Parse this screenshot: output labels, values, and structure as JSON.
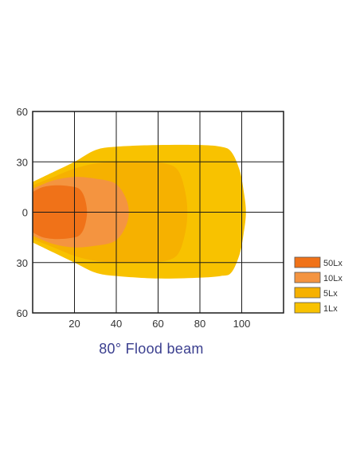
{
  "chart_data": {
    "type": "area",
    "title": "80°  Flood beam",
    "x_ticks": [
      "20",
      "40",
      "60",
      "80",
      "100"
    ],
    "y_ticks": [
      "60",
      "30",
      "0",
      "30",
      "60"
    ],
    "xlim": [
      0,
      120
    ],
    "ylim": [
      -60,
      60
    ],
    "grid": true,
    "legend_position": "right",
    "series": [
      {
        "name": "1Lx",
        "color": "#f8c200",
        "outline": [
          [
            0,
            18
          ],
          [
            10,
            24
          ],
          [
            20,
            30
          ],
          [
            30,
            37
          ],
          [
            40,
            39
          ],
          [
            60,
            40
          ],
          [
            80,
            40
          ],
          [
            90,
            39
          ],
          [
            95,
            36
          ],
          [
            99,
            25
          ],
          [
            101,
            12
          ],
          [
            102,
            0
          ],
          [
            101,
            -12
          ],
          [
            99,
            -25
          ],
          [
            95,
            -36
          ],
          [
            90,
            -38
          ],
          [
            80,
            -39
          ],
          [
            60,
            -39.5
          ],
          [
            40,
            -38
          ],
          [
            30,
            -36
          ],
          [
            20,
            -30
          ],
          [
            10,
            -24
          ],
          [
            0,
            -18
          ]
        ]
      },
      {
        "name": "5Lx",
        "color": "#f6b100",
        "outline": [
          [
            0,
            16
          ],
          [
            10,
            21
          ],
          [
            20,
            26
          ],
          [
            30,
            29
          ],
          [
            40,
            30
          ],
          [
            55,
            30
          ],
          [
            65,
            28.5
          ],
          [
            70,
            24
          ],
          [
            73,
            12
          ],
          [
            74,
            0
          ],
          [
            73,
            -12
          ],
          [
            70,
            -24
          ],
          [
            65,
            -28.5
          ],
          [
            55,
            -30
          ],
          [
            40,
            -30
          ],
          [
            30,
            -29
          ],
          [
            20,
            -26
          ],
          [
            10,
            -21
          ],
          [
            0,
            -16
          ]
        ]
      },
      {
        "name": "10Lx",
        "color": "#f49440",
        "outline": [
          [
            0,
            14
          ],
          [
            10,
            19
          ],
          [
            20,
            21
          ],
          [
            30,
            20
          ],
          [
            38,
            18
          ],
          [
            42,
            14
          ],
          [
            45,
            7
          ],
          [
            46,
            0
          ],
          [
            45,
            -7
          ],
          [
            42,
            -14
          ],
          [
            38,
            -18
          ],
          [
            30,
            -20
          ],
          [
            20,
            -21
          ],
          [
            10,
            -19
          ],
          [
            0,
            -14
          ]
        ]
      },
      {
        "name": "50Lx",
        "color": "#f07218",
        "outline": [
          [
            0,
            12
          ],
          [
            5,
            15
          ],
          [
            12,
            16
          ],
          [
            20,
            15
          ],
          [
            23,
            13
          ],
          [
            25,
            8
          ],
          [
            26,
            0
          ],
          [
            25,
            -8
          ],
          [
            23,
            -13
          ],
          [
            20,
            -15
          ],
          [
            12,
            -16
          ],
          [
            5,
            -15
          ],
          [
            0,
            -12
          ]
        ]
      }
    ]
  }
}
